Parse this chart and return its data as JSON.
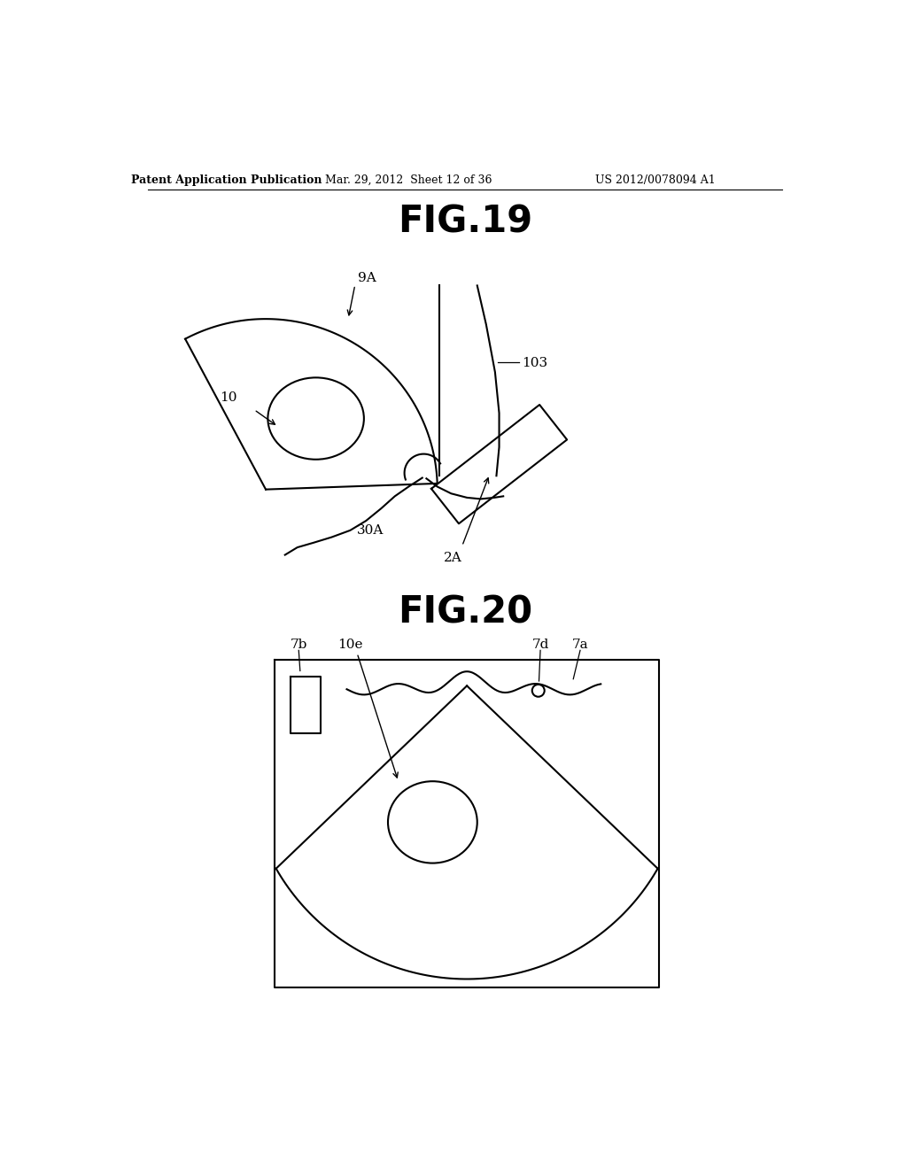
{
  "bg_color": "#ffffff",
  "line_color": "#000000",
  "header_left": "Patent Application Publication",
  "header_mid": "Mar. 29, 2012  Sheet 12 of 36",
  "header_right": "US 2012/0078094 A1",
  "fig19_title": "FIG.19",
  "fig20_title": "FIG.20",
  "label_9A": "9A",
  "label_10": "10",
  "label_103": "103",
  "label_30A": "30A",
  "label_2A": "2A",
  "label_7b": "7b",
  "label_10e": "10e",
  "label_7d": "7d",
  "label_7a": "7a"
}
